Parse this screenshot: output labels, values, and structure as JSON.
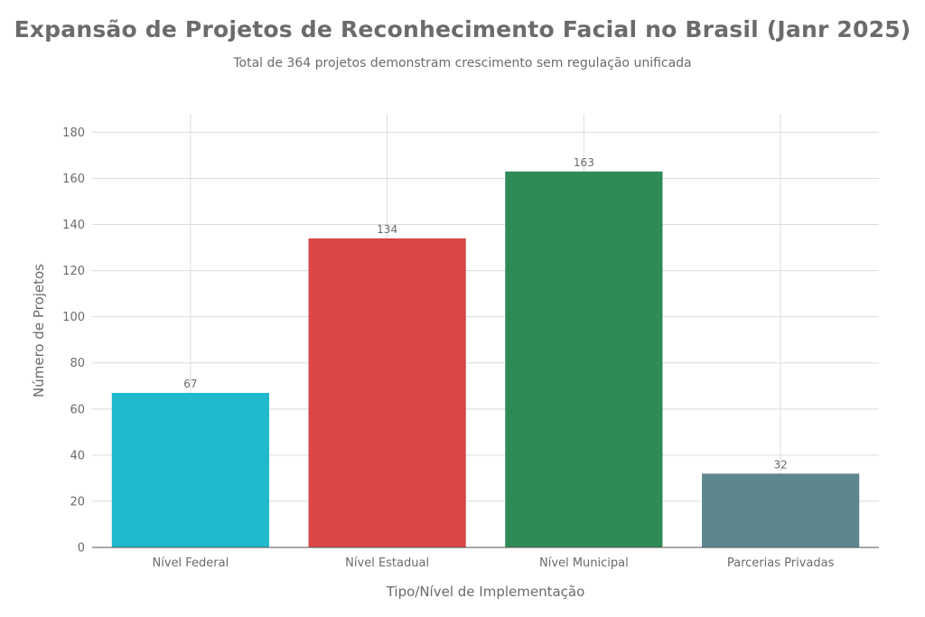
{
  "chart_data": {
    "type": "bar",
    "title": "Expansão de Projetos de Reconhecimento Facial no Brasil (Janr 2025)",
    "subtitle": "Total de 364 projetos demonstram crescimento sem regulação unificada",
    "xlabel": "Tipo/Nível de Implementação",
    "ylabel": "Número de Projetos",
    "categories": [
      "Nível Federal",
      "Nível Estadual",
      "Nível Municipal",
      "Parcerias Privadas"
    ],
    "values": [
      67,
      134,
      163,
      32
    ],
    "colors": [
      "#1fb8cd",
      "#db4545",
      "#2e8b57",
      "#5d878f"
    ],
    "ylim": [
      0,
      188
    ],
    "yticks": [
      0,
      20,
      40,
      60,
      80,
      100,
      120,
      140,
      160,
      180
    ],
    "grid": true,
    "legend": "none"
  }
}
